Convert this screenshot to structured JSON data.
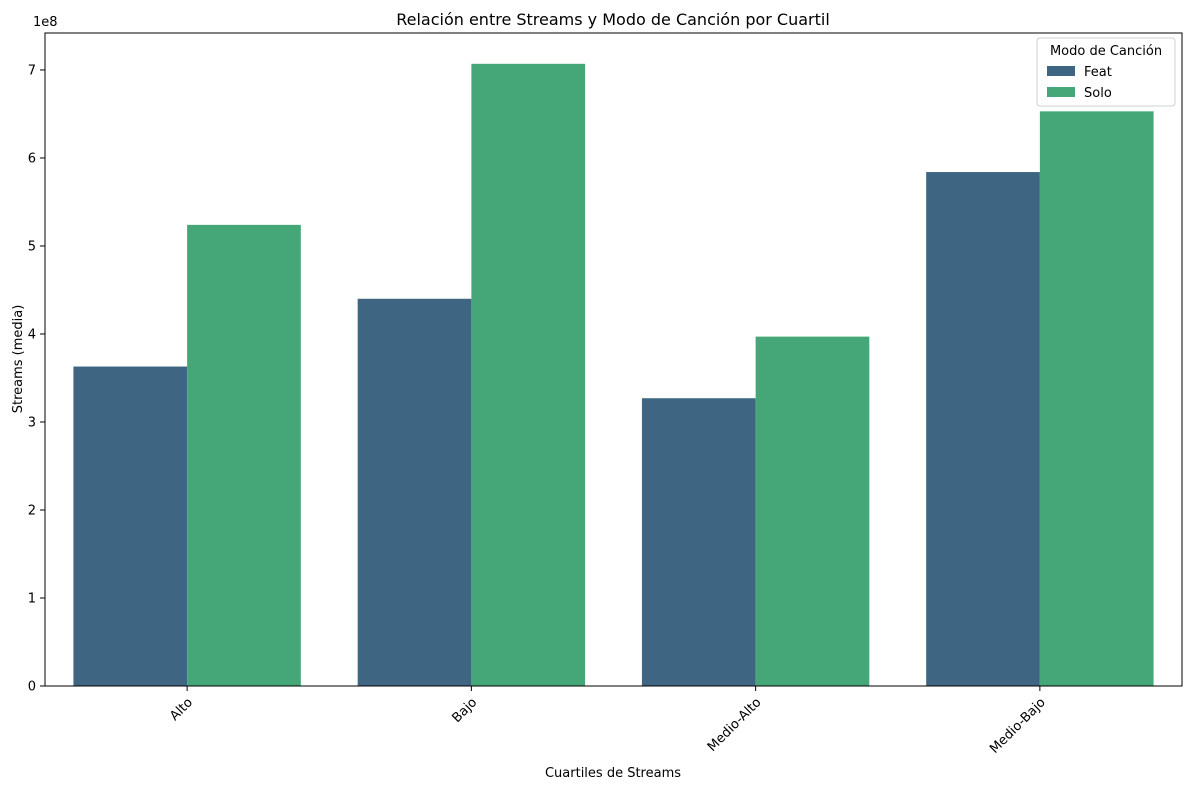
{
  "chart_data": {
    "type": "bar",
    "title": "Relación entre Streams y Modo de Canción por Cuartil",
    "xlabel": "Cuartiles de Streams",
    "ylabel": "Streams (media)",
    "y_offset_label": "1e8",
    "categories": [
      "Alto",
      "Bajo",
      "Medio-Alto",
      "Medio-Bajo"
    ],
    "series": [
      {
        "name": "Feat",
        "color": "#3e6683",
        "values": [
          363000000,
          440000000,
          327000000,
          584000000
        ]
      },
      {
        "name": "Solo",
        "color": "#45a778",
        "values": [
          524000000,
          707000000,
          397000000,
          653000000
        ]
      }
    ],
    "ylim": [
      0,
      742000000
    ],
    "yticks": [
      0,
      1,
      2,
      3,
      4,
      5,
      6,
      7
    ],
    "ytick_scale": 100000000,
    "legend": {
      "title": "Modo de Canción",
      "position": "top-right"
    },
    "grid": false
  }
}
